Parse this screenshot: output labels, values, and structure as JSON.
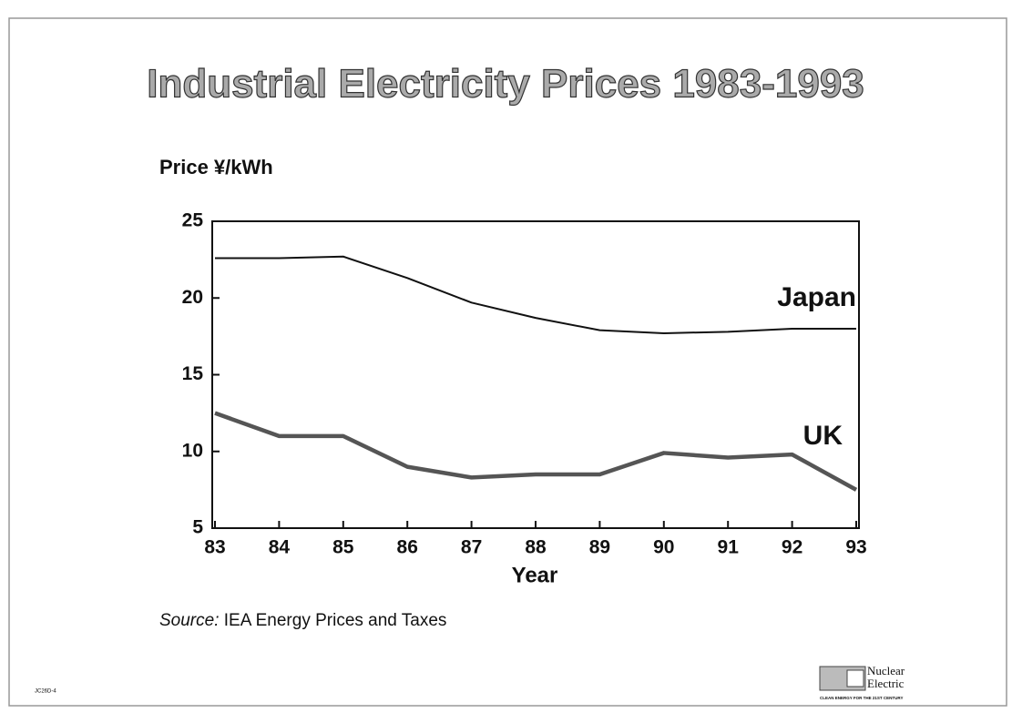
{
  "chart_data": {
    "type": "line",
    "title": "Industrial Electricity Prices 1983-1993",
    "y_label": "Price ¥/kWh",
    "x_label": "Year",
    "categories": [
      "83",
      "84",
      "85",
      "86",
      "87",
      "88",
      "89",
      "90",
      "91",
      "92",
      "93"
    ],
    "series": [
      {
        "name": "Japan",
        "color": "#111111",
        "values": [
          22.6,
          22.6,
          22.7,
          21.3,
          19.7,
          18.7,
          17.9,
          17.7,
          17.8,
          18.0,
          18.0
        ]
      },
      {
        "name": "UK",
        "color": "#555555",
        "values": [
          12.5,
          11.0,
          11.0,
          9.0,
          8.3,
          8.5,
          8.5,
          9.9,
          9.6,
          9.8,
          7.5
        ]
      }
    ],
    "ylim": [
      5,
      25
    ],
    "yticks": [
      5,
      10,
      15,
      20,
      25
    ],
    "grid": false,
    "source_label": "Source:",
    "source": "IEA Energy Prices and Taxes",
    "logo": {
      "line1": "Nuclear",
      "line2": "Electric",
      "tagline": "CLEAN ENERGY FOR THE 21ST CENTURY"
    },
    "doc_code": "JC26D-4"
  }
}
